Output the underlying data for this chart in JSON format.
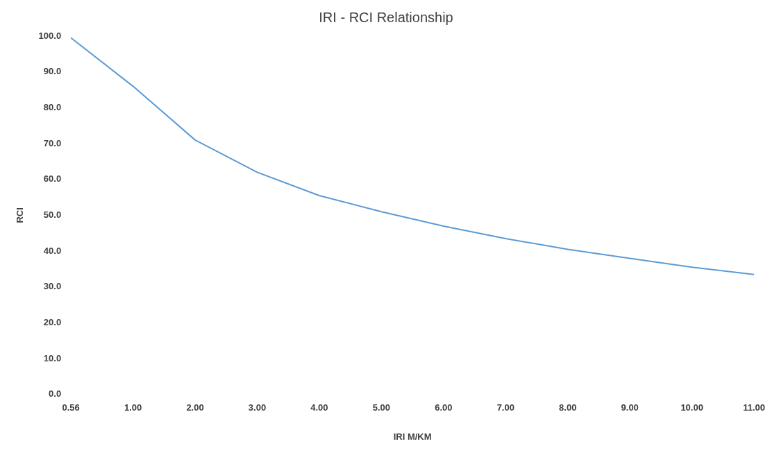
{
  "chart_data": {
    "type": "line",
    "title": "IRI - RCI Relationship",
    "xlabel": "IRI M/KM",
    "ylabel": "RCI",
    "categories": [
      "0.56",
      "1.00",
      "2.00",
      "3.00",
      "4.00",
      "5.00",
      "6.00",
      "7.00",
      "8.00",
      "9.00",
      "10.00",
      "11.00"
    ],
    "series": [
      {
        "color": "#5b9bd5",
        "values": [
          99.5,
          86,
          71,
          62,
          55.5,
          51,
          47,
          43.5,
          40.5,
          38,
          35.5,
          33.5
        ]
      }
    ],
    "ylim": [
      0,
      100
    ],
    "yticks": [
      {
        "value": 0,
        "label": "0.0"
      },
      {
        "value": 10,
        "label": "10.0"
      },
      {
        "value": 20,
        "label": "20.0"
      },
      {
        "value": 30,
        "label": "30.0"
      },
      {
        "value": 40,
        "label": "40.0"
      },
      {
        "value": 50,
        "label": "50.0"
      },
      {
        "value": 60,
        "label": "60.0"
      },
      {
        "value": 70,
        "label": "70.0"
      },
      {
        "value": 80,
        "label": "80.0"
      },
      {
        "value": 90,
        "label": "90.0"
      },
      {
        "value": 100,
        "label": "100.0"
      }
    ],
    "grid": false,
    "legend": false,
    "marker": "none",
    "line_style": "solid"
  }
}
